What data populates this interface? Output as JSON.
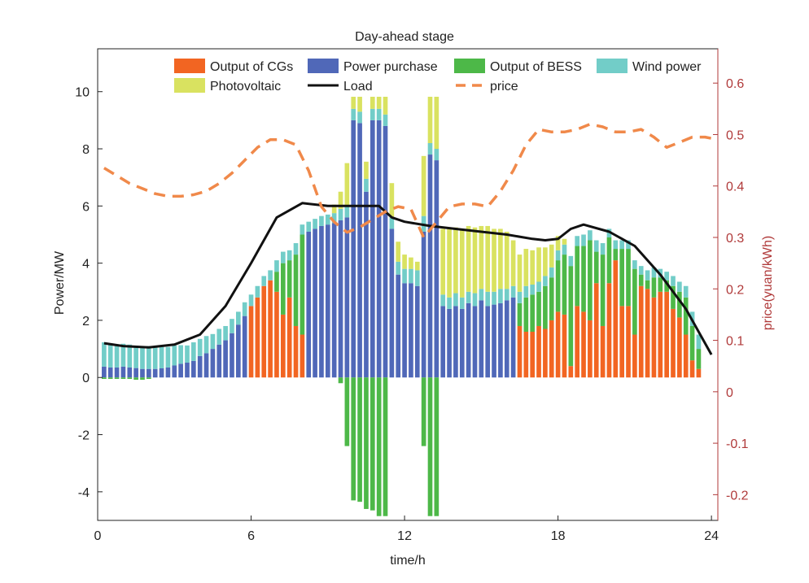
{
  "chart_data": {
    "type": "bar",
    "title": "Day-ahead stage",
    "xlabel": "time/h",
    "ylabel": "Power/MW",
    "ylabel_right": "price(yuan/kWh)",
    "xlim": [
      0,
      24.25
    ],
    "ylim": [
      -5,
      11.5
    ],
    "ylim_right": [
      -0.25,
      0.6667
    ],
    "x_ticks": [
      "0",
      "6",
      "12",
      "18",
      "24"
    ],
    "y_ticks": [
      "-4",
      "-2",
      "0",
      "2",
      "4",
      "6",
      "8",
      "10"
    ],
    "y_right_ticks": [
      "-0.2",
      "-0.1",
      "0",
      "0.1",
      "0.2",
      "0.3",
      "0.4",
      "0.5",
      "0.6"
    ],
    "legend_position": "top",
    "colors": {
      "cgs": "#f26522",
      "purchase": "#5068b8",
      "bess": "#4db848",
      "wind": "#72cdc8",
      "pv": "#d9e260",
      "load": "#111111",
      "price": "#f0894a",
      "right_axis": "#b03a3a"
    },
    "series": [
      {
        "name": "Output of CGs",
        "key": "cgs",
        "values": [
          0,
          0,
          0,
          0,
          0,
          0,
          0,
          0,
          0,
          0,
          0,
          0,
          0,
          0,
          0,
          0,
          0,
          0,
          0,
          0,
          0,
          0,
          0,
          2.5,
          2.8,
          3.2,
          3.4,
          3,
          2.2,
          2.8,
          1.8,
          1.5,
          0,
          0,
          0,
          0,
          0,
          0,
          0,
          0,
          0,
          0,
          0,
          0,
          0,
          0,
          0,
          0,
          0,
          0,
          0,
          0,
          0,
          0,
          0,
          0,
          0,
          0,
          0,
          0,
          0,
          0,
          0,
          0,
          0,
          1.8,
          1.6,
          1.6,
          1.8,
          1.7,
          2,
          2.3,
          2.2,
          0.4,
          2.5,
          2.3,
          2,
          3.3,
          1.8,
          3.3,
          4.1,
          2.5,
          2.5,
          1.5,
          3.2,
          3.1,
          2.8,
          3,
          3,
          2.4,
          2.1,
          1.5,
          0.6,
          0.3
        ]
      },
      {
        "name": "Power purchase",
        "key": "purchase",
        "values": [
          0.38,
          0.35,
          0.35,
          0.38,
          0.35,
          0.33,
          0.3,
          0.3,
          0.3,
          0.32,
          0.35,
          0.42,
          0.48,
          0.52,
          0.58,
          0.75,
          0.85,
          1,
          1.15,
          1.3,
          1.55,
          1.85,
          2.15,
          0,
          0,
          0,
          0,
          0,
          0,
          0,
          0,
          0,
          5.1,
          5.2,
          5.3,
          5.35,
          5.4,
          5.5,
          5.6,
          9,
          8.9,
          6.5,
          9,
          9,
          8.8,
          5.2,
          3.6,
          3.3,
          3.3,
          3.2,
          5.1,
          7.8,
          7.6,
          2.5,
          2.4,
          2.5,
          2.4,
          2.6,
          2.5,
          2.7,
          2.5,
          2.55,
          2.6,
          2.7,
          2.8,
          0,
          0,
          0,
          0,
          0,
          0,
          0,
          0,
          0,
          0,
          0,
          0,
          0,
          0,
          0,
          0,
          0,
          0,
          0,
          0,
          0,
          0,
          0,
          0,
          0,
          0,
          0,
          0,
          0
        ]
      },
      {
        "name": "Output of BESS",
        "key": "bess",
        "values": [
          -0.05,
          -0.05,
          -0.05,
          -0.05,
          -0.05,
          -0.08,
          -0.08,
          -0.05,
          0,
          0,
          0,
          0,
          0,
          0,
          0,
          0,
          0,
          0,
          0,
          0,
          0,
          0,
          0,
          0,
          0,
          0,
          0,
          0.7,
          1.8,
          1.3,
          2.5,
          3.5,
          0,
          0,
          0,
          0,
          0,
          -0.2,
          -2.4,
          -4.3,
          -4.35,
          -4.6,
          -4.65,
          -4.85,
          -4.85,
          0,
          0,
          0,
          0,
          0,
          -2.4,
          -4.85,
          -4.85,
          0,
          0,
          0,
          0,
          0,
          0,
          0,
          0,
          0,
          0,
          0,
          0,
          0.8,
          1.2,
          1.3,
          1.2,
          1.5,
          1.5,
          1.8,
          2.1,
          3.5,
          2.1,
          2.3,
          2.8,
          1.1,
          2.5,
          1.6,
          0.4,
          2,
          2,
          2.3,
          0.4,
          0.3,
          0.7,
          0.5,
          0.4,
          0.8,
          0.9,
          1.3,
          1.2,
          0.7
        ]
      },
      {
        "name": "Wind power",
        "key": "wind",
        "values": [
          0.85,
          0.82,
          0.8,
          0.8,
          0.8,
          0.78,
          0.8,
          0.8,
          0.8,
          0.8,
          0.72,
          0.7,
          0.65,
          0.6,
          0.65,
          0.6,
          0.6,
          0.52,
          0.55,
          0.5,
          0.5,
          0.45,
          0.48,
          0.4,
          0.4,
          0.35,
          0.35,
          0.4,
          0.4,
          0.35,
          0.4,
          0.35,
          0.35,
          0.35,
          0.35,
          0.35,
          0.35,
          0.4,
          0.4,
          0.4,
          0.4,
          0.45,
          0.4,
          0.4,
          0.4,
          0.4,
          0.45,
          0.5,
          0.5,
          0.55,
          0.55,
          0.4,
          0.4,
          0.4,
          0.4,
          0.45,
          0.4,
          0.4,
          0.45,
          0.4,
          0.5,
          0.45,
          0.5,
          0.4,
          0.4,
          0.4,
          0.4,
          0.35,
          0.35,
          0.35,
          0.35,
          0.35,
          0.35,
          0.35,
          0.35,
          0.4,
          0.35,
          0.4,
          0.4,
          0.3,
          0.3,
          0.3,
          0.3,
          0.3,
          0.3,
          0.35,
          0.35,
          0.3,
          0.3,
          0.35,
          0.35,
          0.4,
          0.5,
          0.5
        ]
      },
      {
        "name": "Photovoltaic",
        "key": "pv",
        "values": [
          0,
          0,
          0,
          0,
          0,
          0,
          0,
          0,
          0,
          0,
          0,
          0,
          0,
          0,
          0,
          0,
          0,
          0,
          0,
          0,
          0,
          0,
          0,
          0,
          0,
          0,
          0,
          0,
          0,
          0,
          0,
          0,
          0,
          0,
          0,
          0,
          0.3,
          0.6,
          1.5,
          1,
          1.1,
          0.6,
          1.4,
          1.3,
          1.5,
          1.2,
          0.7,
          0.5,
          0.4,
          0.3,
          2.1,
          1.9,
          2.1,
          2.3,
          2.4,
          2.3,
          2.4,
          2.3,
          2.3,
          2.2,
          2.3,
          2.2,
          2.1,
          2,
          1.6,
          1.3,
          1.3,
          1.2,
          1.2,
          1,
          0.8,
          0.5,
          0.2,
          0,
          0,
          0,
          0,
          0,
          0,
          0,
          0,
          0,
          0,
          0,
          0,
          0,
          0,
          0,
          0,
          0,
          0,
          0,
          0,
          0
        ]
      }
    ],
    "load": {
      "name": "Load",
      "x": [
        0.25,
        1,
        2,
        3,
        4,
        5,
        6,
        7,
        8,
        9,
        10,
        11,
        11.5,
        12,
        13,
        14,
        15,
        16,
        17,
        17.5,
        18,
        18.5,
        19,
        20,
        21,
        22,
        23,
        24
      ],
      "values": [
        1.2,
        1.1,
        1.05,
        1.15,
        1.5,
        2.5,
        4,
        5.6,
        6.1,
        6,
        6,
        6,
        5.6,
        5.45,
        5.3,
        5.2,
        5.1,
        5,
        4.85,
        4.8,
        4.85,
        5.2,
        5.35,
        5.1,
        4.6,
        3.6,
        2.4,
        0.8
      ]
    },
    "price": {
      "name": "price",
      "x": [
        0.25,
        0.75,
        1.25,
        1.75,
        2.25,
        2.75,
        3.25,
        3.75,
        4.25,
        4.75,
        5.25,
        5.75,
        6.25,
        6.75,
        7.25,
        7.75,
        8.25,
        8.75,
        9.25,
        9.75,
        10.25,
        10.75,
        11.25,
        11.75,
        12.25,
        12.75,
        13.25,
        13.75,
        14.25,
        14.75,
        15.25,
        15.75,
        16.25,
        16.75,
        17.25,
        17.75,
        18.25,
        18.75,
        19.25,
        19.75,
        20.25,
        20.75,
        21.25,
        21.75,
        22.25,
        22.75,
        23.25,
        23.75,
        24.25
      ],
      "values": [
        0.435,
        0.42,
        0.405,
        0.395,
        0.385,
        0.38,
        0.38,
        0.383,
        0.39,
        0.405,
        0.425,
        0.45,
        0.475,
        0.49,
        0.49,
        0.48,
        0.43,
        0.36,
        0.33,
        0.31,
        0.32,
        0.335,
        0.35,
        0.36,
        0.355,
        0.3,
        0.33,
        0.36,
        0.365,
        0.365,
        0.36,
        0.39,
        0.43,
        0.48,
        0.51,
        0.505,
        0.505,
        0.51,
        0.52,
        0.515,
        0.505,
        0.505,
        0.51,
        0.495,
        0.475,
        0.485,
        0.495,
        0.495,
        0.49
      ]
    }
  }
}
